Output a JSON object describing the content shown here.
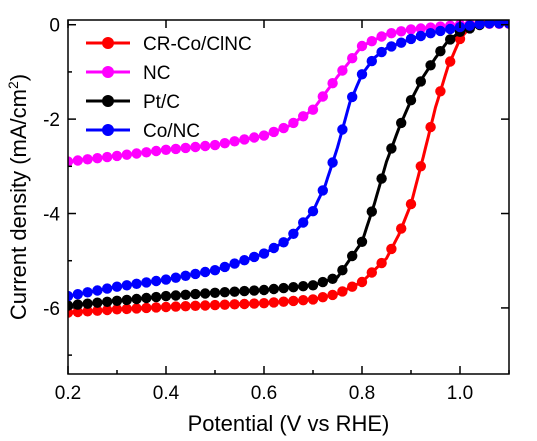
{
  "chart_data": {
    "type": "line",
    "title": "",
    "xlabel": "Potential (V vs RHE)",
    "ylabel_main": "Current density (mA/cm",
    "ylabel_sup": "2",
    "ylabel_close": ")",
    "xlim": [
      0.2,
      1.1
    ],
    "ylim": [
      -7.4,
      0.1
    ],
    "xticks": [
      0.2,
      0.4,
      0.6,
      0.8,
      1.0
    ],
    "xtick_labels": [
      "0.2",
      "0.4",
      "0.6",
      "0.8",
      "1.0"
    ],
    "yticks": [
      0,
      -2,
      -4,
      -6
    ],
    "ytick_labels": [
      "0",
      "-2",
      "-4",
      "-6"
    ],
    "legend_position": "top-left",
    "grid": false,
    "series": [
      {
        "name": "CR-Co/ClNC",
        "color": "#ff0000",
        "x": [
          0.2,
          0.3,
          0.4,
          0.5,
          0.6,
          0.7,
          0.75,
          0.8,
          0.85,
          0.875,
          0.9,
          0.925,
          0.95,
          0.975,
          1.0,
          1.025,
          1.05,
          1.1
        ],
        "y": [
          -6.1,
          -6.03,
          -5.98,
          -5.94,
          -5.9,
          -5.82,
          -5.7,
          -5.45,
          -4.95,
          -4.45,
          -3.8,
          -2.8,
          -1.75,
          -0.9,
          -0.3,
          0.0,
          0.05,
          0.05
        ]
      },
      {
        "name": "NC",
        "color": "#ff00ff",
        "x": [
          0.2,
          0.3,
          0.4,
          0.5,
          0.6,
          0.65,
          0.7,
          0.75,
          0.8,
          0.85,
          0.9,
          0.95,
          1.0,
          1.05,
          1.1
        ],
        "y": [
          -2.9,
          -2.78,
          -2.65,
          -2.55,
          -2.35,
          -2.15,
          -1.8,
          -1.1,
          -0.45,
          -0.2,
          -0.1,
          -0.05,
          0.0,
          0.02,
          0.02
        ]
      },
      {
        "name": "Pt/C",
        "color": "#000000",
        "x": [
          0.2,
          0.3,
          0.4,
          0.5,
          0.6,
          0.7,
          0.75,
          0.8,
          0.825,
          0.85,
          0.875,
          0.9,
          0.925,
          0.95,
          0.975,
          1.0,
          1.05,
          1.1
        ],
        "y": [
          -5.95,
          -5.85,
          -5.75,
          -5.68,
          -5.62,
          -5.52,
          -5.35,
          -4.6,
          -3.8,
          -2.9,
          -2.2,
          -1.6,
          -1.1,
          -0.7,
          -0.35,
          -0.15,
          0.03,
          0.03
        ]
      },
      {
        "name": "Co/NC",
        "color": "#0000ff",
        "x": [
          0.2,
          0.3,
          0.4,
          0.5,
          0.6,
          0.65,
          0.7,
          0.725,
          0.75,
          0.775,
          0.8,
          0.825,
          0.85,
          0.9,
          0.95,
          1.0,
          1.05,
          1.1
        ],
        "y": [
          -5.75,
          -5.55,
          -5.4,
          -5.2,
          -4.85,
          -4.55,
          -3.95,
          -3.4,
          -2.6,
          -1.65,
          -1.05,
          -0.7,
          -0.5,
          -0.3,
          -0.15,
          -0.05,
          0.03,
          0.03
        ]
      }
    ]
  }
}
